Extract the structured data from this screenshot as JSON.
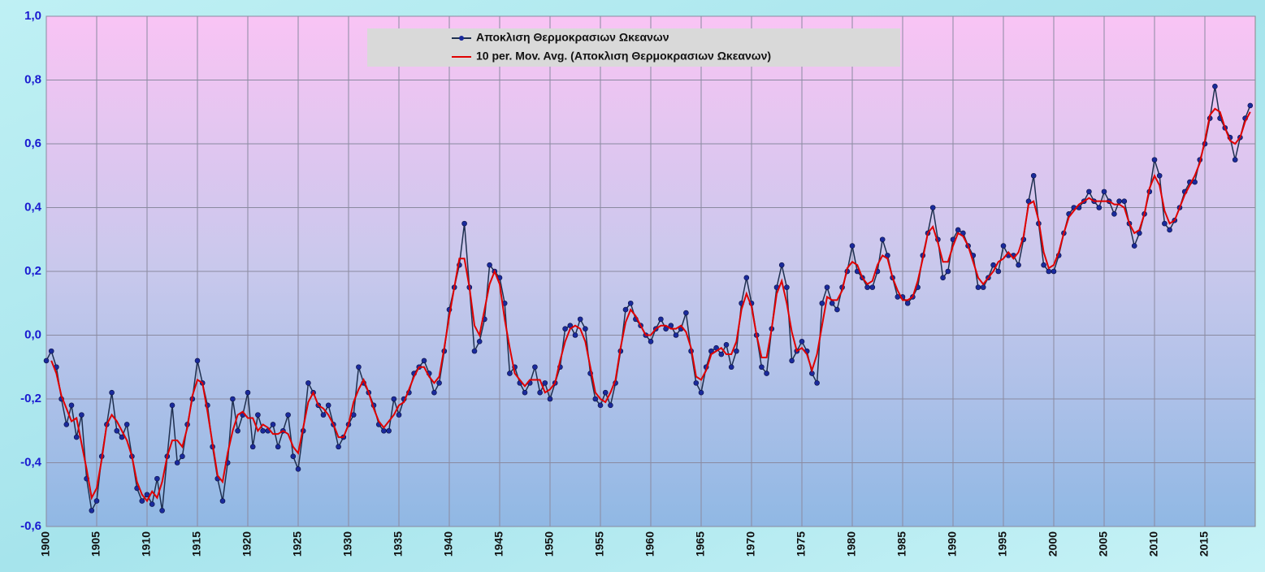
{
  "chart_data": {
    "type": "line",
    "x": [
      1900,
      1900.5,
      1901,
      1901.5,
      1902,
      1902.5,
      1903,
      1903.5,
      1904,
      1904.5,
      1905,
      1905.5,
      1906,
      1906.5,
      1907,
      1907.5,
      1908,
      1908.5,
      1909,
      1909.5,
      1910,
      1910.5,
      1911,
      1911.5,
      1912,
      1912.5,
      1913,
      1913.5,
      1914,
      1914.5,
      1915,
      1915.5,
      1916,
      1916.5,
      1917,
      1917.5,
      1918,
      1918.5,
      1919,
      1919.5,
      1920,
      1920.5,
      1921,
      1921.5,
      1922,
      1922.5,
      1923,
      1923.5,
      1924,
      1924.5,
      1925,
      1925.5,
      1926,
      1926.5,
      1927,
      1927.5,
      1928,
      1928.5,
      1929,
      1929.5,
      1930,
      1930.5,
      1931,
      1931.5,
      1932,
      1932.5,
      1933,
      1933.5,
      1934,
      1934.5,
      1935,
      1935.5,
      1936,
      1936.5,
      1937,
      1937.5,
      1938,
      1938.5,
      1939,
      1939.5,
      1940,
      1940.5,
      1941,
      1941.5,
      1942,
      1942.5,
      1943,
      1943.5,
      1944,
      1944.5,
      1945,
      1945.5,
      1946,
      1946.5,
      1947,
      1947.5,
      1948,
      1948.5,
      1949,
      1949.5,
      1950,
      1950.5,
      1951,
      1951.5,
      1952,
      1952.5,
      1953,
      1953.5,
      1954,
      1954.5,
      1955,
      1955.5,
      1956,
      1956.5,
      1957,
      1957.5,
      1958,
      1958.5,
      1959,
      1959.5,
      1960,
      1960.5,
      1961,
      1961.5,
      1962,
      1962.5,
      1963,
      1963.5,
      1964,
      1964.5,
      1965,
      1965.5,
      1966,
      1966.5,
      1967,
      1967.5,
      1968,
      1968.5,
      1969,
      1969.5,
      1970,
      1970.5,
      1971,
      1971.5,
      1972,
      1972.5,
      1973,
      1973.5,
      1974,
      1974.5,
      1975,
      1975.5,
      1976,
      1976.5,
      1977,
      1977.5,
      1978,
      1978.5,
      1979,
      1979.5,
      1980,
      1980.5,
      1981,
      1981.5,
      1982,
      1982.5,
      1983,
      1983.5,
      1984,
      1984.5,
      1985,
      1985.5,
      1986,
      1986.5,
      1987,
      1987.5,
      1988,
      1988.5,
      1989,
      1989.5,
      1990,
      1990.5,
      1991,
      1991.5,
      1992,
      1992.5,
      1993,
      1993.5,
      1994,
      1994.5,
      1995,
      1995.5,
      1996,
      1996.5,
      1997,
      1997.5,
      1998,
      1998.5,
      1999,
      1999.5,
      2000,
      2000.5,
      2001,
      2001.5,
      2002,
      2002.5,
      2003,
      2003.5,
      2004,
      2004.5,
      2005,
      2005.5,
      2006,
      2006.5,
      2007,
      2007.5,
      2008,
      2008.5,
      2009,
      2009.5,
      2010,
      2010.5,
      2011,
      2011.5,
      2012,
      2012.5,
      2013,
      2013.5,
      2014,
      2014.5,
      2015,
      2015.5,
      2016,
      2016.5,
      2017,
      2017.5,
      2018,
      2018.5,
      2019,
      2019.5
    ],
    "series": [
      {
        "name": "Αποκλιση Θερμοκρασιων Ωκεανων",
        "color": "#1a2a9c",
        "line_color": "#1f3050",
        "marker": true,
        "values": [
          -0.08,
          -0.05,
          -0.1,
          -0.2,
          -0.28,
          -0.22,
          -0.32,
          -0.25,
          -0.45,
          -0.55,
          -0.52,
          -0.38,
          -0.28,
          -0.18,
          -0.3,
          -0.32,
          -0.28,
          -0.38,
          -0.48,
          -0.52,
          -0.5,
          -0.53,
          -0.45,
          -0.55,
          -0.38,
          -0.22,
          -0.4,
          -0.38,
          -0.28,
          -0.2,
          -0.08,
          -0.15,
          -0.22,
          -0.35,
          -0.45,
          -0.52,
          -0.4,
          -0.2,
          -0.3,
          -0.25,
          -0.18,
          -0.35,
          -0.25,
          -0.3,
          -0.3,
          -0.28,
          -0.35,
          -0.3,
          -0.25,
          -0.38,
          -0.42,
          -0.3,
          -0.15,
          -0.18,
          -0.22,
          -0.25,
          -0.22,
          -0.28,
          -0.35,
          -0.32,
          -0.28,
          -0.25,
          -0.1,
          -0.15,
          -0.18,
          -0.22,
          -0.28,
          -0.3,
          -0.3,
          -0.2,
          -0.25,
          -0.2,
          -0.18,
          -0.12,
          -0.1,
          -0.08,
          -0.12,
          -0.18,
          -0.15,
          -0.05,
          0.08,
          0.15,
          0.22,
          0.35,
          0.15,
          -0.05,
          -0.02,
          0.05,
          0.22,
          0.2,
          0.18,
          0.1,
          -0.12,
          -0.1,
          -0.15,
          -0.18,
          -0.15,
          -0.1,
          -0.18,
          -0.15,
          -0.2,
          -0.15,
          -0.1,
          0.02,
          0.03,
          0.0,
          0.05,
          0.02,
          -0.12,
          -0.2,
          -0.22,
          -0.18,
          -0.22,
          -0.15,
          -0.05,
          0.08,
          0.1,
          0.05,
          0.03,
          0.0,
          -0.02,
          0.02,
          0.05,
          0.02,
          0.03,
          0.0,
          0.02,
          0.07,
          -0.05,
          -0.15,
          -0.18,
          -0.1,
          -0.05,
          -0.04,
          -0.06,
          -0.03,
          -0.1,
          -0.05,
          0.1,
          0.18,
          0.1,
          0.0,
          -0.1,
          -0.12,
          0.02,
          0.15,
          0.22,
          0.15,
          -0.08,
          -0.05,
          -0.02,
          -0.05,
          -0.12,
          -0.15,
          0.1,
          0.15,
          0.1,
          0.08,
          0.15,
          0.2,
          0.28,
          0.2,
          0.18,
          0.15,
          0.15,
          0.2,
          0.3,
          0.25,
          0.18,
          0.12,
          0.12,
          0.1,
          0.12,
          0.15,
          0.25,
          0.32,
          0.4,
          0.3,
          0.18,
          0.2,
          0.3,
          0.33,
          0.32,
          0.28,
          0.25,
          0.15,
          0.15,
          0.18,
          0.22,
          0.2,
          0.28,
          0.25,
          0.25,
          0.22,
          0.3,
          0.42,
          0.5,
          0.35,
          0.22,
          0.2,
          0.2,
          0.25,
          0.32,
          0.38,
          0.4,
          0.4,
          0.42,
          0.45,
          0.42,
          0.4,
          0.45,
          0.42,
          0.38,
          0.42,
          0.42,
          0.35,
          0.28,
          0.32,
          0.38,
          0.45,
          0.55,
          0.5,
          0.35,
          0.33,
          0.36,
          0.4,
          0.45,
          0.48,
          0.48,
          0.55,
          0.6,
          0.68,
          0.78,
          0.68,
          0.65,
          0.62,
          0.55,
          0.62,
          0.68,
          0.72
        ]
      },
      {
        "name": "10 per. Mov. Avg. (Αποκλιση Θερμοκρασιων Ωκεανων)",
        "color": "#e00000",
        "marker": false,
        "values": [
          null,
          -0.08,
          -0.12,
          -0.19,
          -0.23,
          -0.27,
          -0.26,
          -0.34,
          -0.42,
          -0.51,
          -0.48,
          -0.39,
          -0.28,
          -0.25,
          -0.27,
          -0.3,
          -0.33,
          -0.38,
          -0.46,
          -0.5,
          -0.52,
          -0.49,
          -0.51,
          -0.46,
          -0.38,
          -0.33,
          -0.33,
          -0.35,
          -0.29,
          -0.19,
          -0.14,
          -0.15,
          -0.24,
          -0.34,
          -0.44,
          -0.46,
          -0.37,
          -0.3,
          -0.25,
          -0.24,
          -0.26,
          -0.26,
          -0.3,
          -0.28,
          -0.29,
          -0.31,
          -0.31,
          -0.3,
          -0.31,
          -0.35,
          -0.37,
          -0.29,
          -0.21,
          -0.18,
          -0.22,
          -0.23,
          -0.25,
          -0.28,
          -0.32,
          -0.32,
          -0.28,
          -0.21,
          -0.17,
          -0.14,
          -0.18,
          -0.23,
          -0.27,
          -0.29,
          -0.27,
          -0.25,
          -0.22,
          -0.21,
          -0.17,
          -0.13,
          -0.1,
          -0.1,
          -0.13,
          -0.15,
          -0.13,
          -0.04,
          0.06,
          0.15,
          0.24,
          0.24,
          0.15,
          0.03,
          0.0,
          0.08,
          0.16,
          0.2,
          0.16,
          0.05,
          -0.04,
          -0.12,
          -0.14,
          -0.16,
          -0.14,
          -0.14,
          -0.14,
          -0.18,
          -0.17,
          -0.15,
          -0.08,
          -0.02,
          0.02,
          0.03,
          0.02,
          -0.02,
          -0.1,
          -0.18,
          -0.2,
          -0.21,
          -0.18,
          -0.14,
          -0.04,
          0.04,
          0.08,
          0.06,
          0.03,
          0.0,
          0.0,
          0.02,
          0.03,
          0.03,
          0.02,
          0.02,
          0.03,
          0.01,
          -0.04,
          -0.13,
          -0.14,
          -0.11,
          -0.06,
          -0.05,
          -0.04,
          -0.06,
          -0.06,
          -0.02,
          0.08,
          0.13,
          0.09,
          0.0,
          -0.07,
          -0.07,
          0.02,
          0.13,
          0.17,
          0.1,
          0.01,
          -0.05,
          -0.04,
          -0.06,
          -0.11,
          -0.06,
          0.03,
          0.12,
          0.11,
          0.11,
          0.14,
          0.21,
          0.23,
          0.22,
          0.18,
          0.16,
          0.17,
          0.22,
          0.25,
          0.24,
          0.18,
          0.14,
          0.11,
          0.11,
          0.12,
          0.17,
          0.24,
          0.32,
          0.34,
          0.29,
          0.23,
          0.23,
          0.28,
          0.32,
          0.31,
          0.28,
          0.23,
          0.18,
          0.16,
          0.18,
          0.2,
          0.23,
          0.24,
          0.26,
          0.24,
          0.26,
          0.31,
          0.41,
          0.42,
          0.36,
          0.26,
          0.21,
          0.22,
          0.26,
          0.32,
          0.37,
          0.39,
          0.41,
          0.42,
          0.43,
          0.42,
          0.42,
          0.42,
          0.42,
          0.41,
          0.41,
          0.4,
          0.35,
          0.32,
          0.33,
          0.38,
          0.46,
          0.5,
          0.47,
          0.39,
          0.35,
          0.36,
          0.4,
          0.44,
          0.47,
          0.5,
          0.54,
          0.61,
          0.69,
          0.71,
          0.7,
          0.65,
          0.61,
          0.6,
          0.62,
          0.67,
          0.7
        ]
      }
    ],
    "xlim": [
      1900,
      2020
    ],
    "xticks": [
      1900,
      1905,
      1910,
      1915,
      1920,
      1925,
      1930,
      1935,
      1940,
      1945,
      1950,
      1955,
      1960,
      1965,
      1970,
      1975,
      1980,
      1985,
      1990,
      1995,
      2000,
      2005,
      2010,
      2015
    ],
    "ylim": [
      -0.6,
      1.0
    ],
    "yticks": [
      {
        "value": -0.6,
        "label": "-0,6"
      },
      {
        "value": -0.4,
        "label": "-0,4"
      },
      {
        "value": -0.2,
        "label": "-0,2"
      },
      {
        "value": 0,
        "label": "0,0"
      },
      {
        "value": 0.2,
        "label": "0,2"
      },
      {
        "value": 0.4,
        "label": "0,4"
      },
      {
        "value": 0.6,
        "label": "0,6"
      },
      {
        "value": 0.8,
        "label": "0,8"
      },
      {
        "value": 1.0,
        "label": "1,0"
      }
    ],
    "grid": true,
    "legend": "top"
  }
}
